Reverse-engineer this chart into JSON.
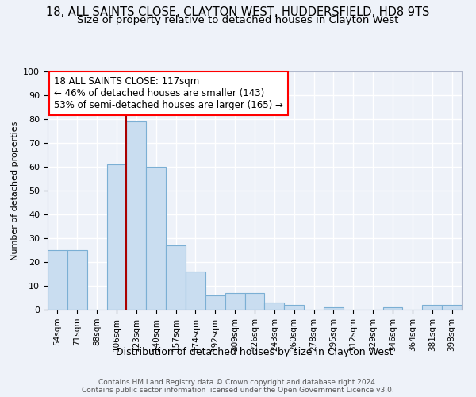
{
  "title": "18, ALL SAINTS CLOSE, CLAYTON WEST, HUDDERSFIELD, HD8 9TS",
  "subtitle": "Size of property relative to detached houses in Clayton West",
  "xlabel": "Distribution of detached houses by size in Clayton West",
  "ylabel": "Number of detached properties",
  "bar_labels": [
    "54sqm",
    "71sqm",
    "88sqm",
    "106sqm",
    "123sqm",
    "140sqm",
    "157sqm",
    "174sqm",
    "192sqm",
    "209sqm",
    "226sqm",
    "243sqm",
    "260sqm",
    "278sqm",
    "295sqm",
    "312sqm",
    "329sqm",
    "346sqm",
    "364sqm",
    "381sqm",
    "398sqm"
  ],
  "bar_values": [
    25,
    25,
    0,
    61,
    79,
    60,
    27,
    16,
    6,
    7,
    7,
    3,
    2,
    0,
    1,
    0,
    0,
    1,
    0,
    2,
    2
  ],
  "bar_color": "#c9ddf0",
  "bar_edge_color": "#7bafd4",
  "ylim": [
    0,
    100
  ],
  "property_line_bar_index": 4,
  "annotation_line1": "18 ALL SAINTS CLOSE: 117sqm",
  "annotation_line2": "← 46% of detached houses are smaller (143)",
  "annotation_line3": "53% of semi-detached houses are larger (165) →",
  "footer1": "Contains HM Land Registry data © Crown copyright and database right 2024.",
  "footer2": "Contains public sector information licensed under the Open Government Licence v3.0.",
  "bg_color": "#eef2f9",
  "grid_color": "#ffffff",
  "title_fontsize": 10.5,
  "subtitle_fontsize": 9.5,
  "ylabel_fontsize": 8,
  "xlabel_fontsize": 9,
  "tick_fontsize": 8,
  "xtick_fontsize": 7.5,
  "footer_fontsize": 6.5,
  "annotation_fontsize": 8.5
}
